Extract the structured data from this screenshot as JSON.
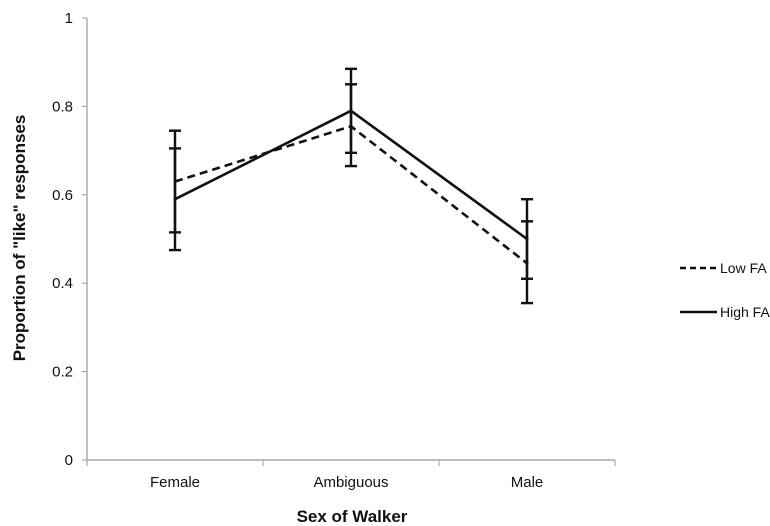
{
  "chart_data": {
    "type": "line",
    "title": "",
    "xlabel": "Sex of Walker",
    "ylabel": "Proportion of \"like\" responses",
    "categories": [
      "Female",
      "Ambiguous",
      "Male"
    ],
    "ylim": [
      0,
      1
    ],
    "yticks": [
      0,
      0.2,
      0.4,
      0.6,
      0.8,
      1
    ],
    "ytick_labels": [
      "0",
      "0.2",
      "0.4",
      "0.6",
      "0.8",
      "1"
    ],
    "grid": false,
    "legend_position": "right",
    "series": [
      {
        "name": "Low FA",
        "line_style": "dashed",
        "values": [
          0.63,
          0.755,
          0.445
        ],
        "error_low": [
          0.515,
          0.665,
          0.355
        ],
        "error_high": [
          0.745,
          0.85,
          0.54
        ]
      },
      {
        "name": "High FA",
        "line_style": "solid",
        "values": [
          0.59,
          0.79,
          0.5
        ],
        "error_low": [
          0.475,
          0.695,
          0.41
        ],
        "error_high": [
          0.705,
          0.885,
          0.59
        ]
      }
    ],
    "colors": {
      "line": "#111111",
      "axis": "#999999"
    }
  }
}
